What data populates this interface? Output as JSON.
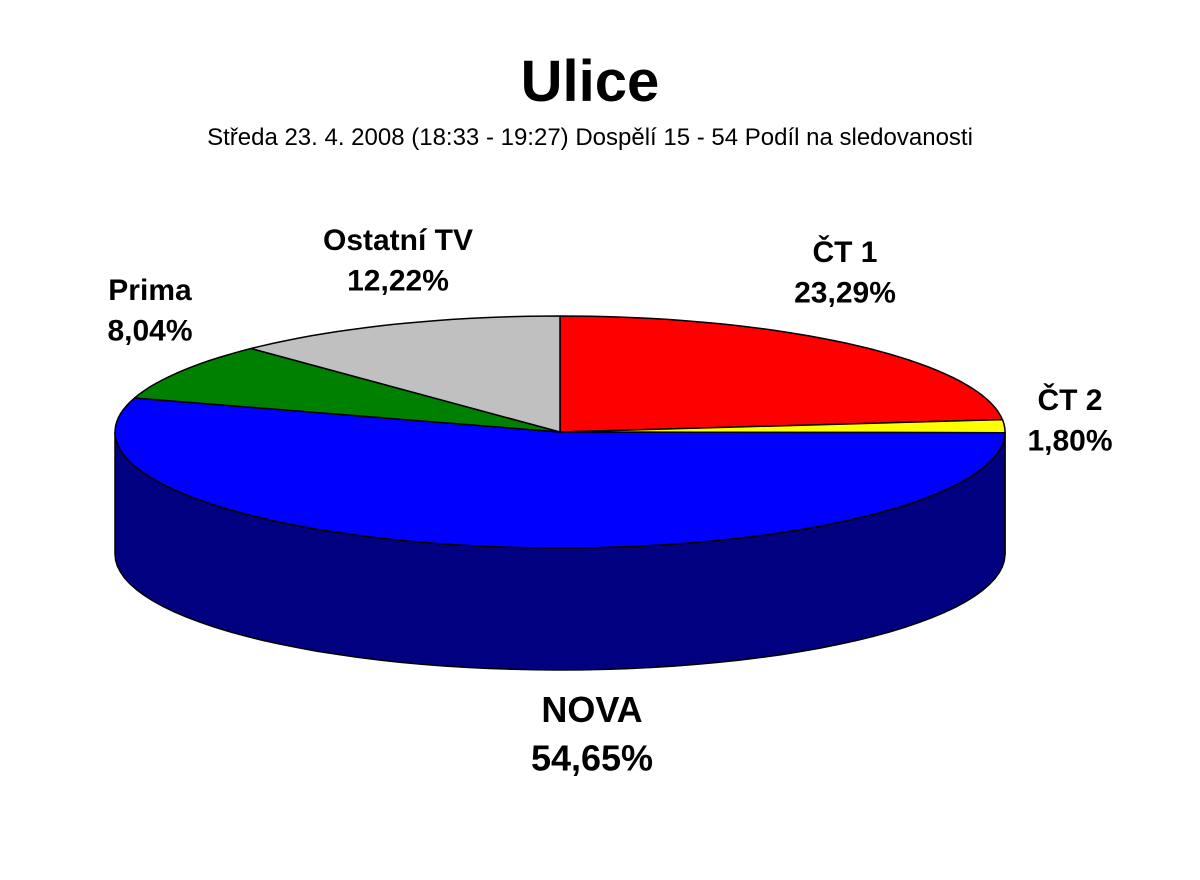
{
  "chart_data": {
    "type": "pie",
    "title": "Ulice",
    "subtitle": "Středa 23. 4. 2008 (18:33 - 19:27) Dospělí 15 - 54 Podíl na sledovanosti",
    "slices": [
      {
        "label": "ČT 1",
        "value": 23.29,
        "value_label": "23,29%",
        "color": "#ff0000",
        "side_color": "#8b0000"
      },
      {
        "label": "ČT 2",
        "value": 1.8,
        "value_label": "1,80%",
        "color": "#ffff00",
        "side_color": "#8b8b00"
      },
      {
        "label": "NOVA",
        "value": 54.65,
        "value_label": "54,65%",
        "color": "#0000ff",
        "side_color": "#000080"
      },
      {
        "label": "Prima",
        "value": 8.04,
        "value_label": "8,04%",
        "color": "#008000",
        "side_color": "#004000"
      },
      {
        "label": "Ostatní TV",
        "value": 12.22,
        "value_label": "12,22%",
        "color": "#c0c0c0",
        "side_color": "#606060"
      }
    ]
  }
}
